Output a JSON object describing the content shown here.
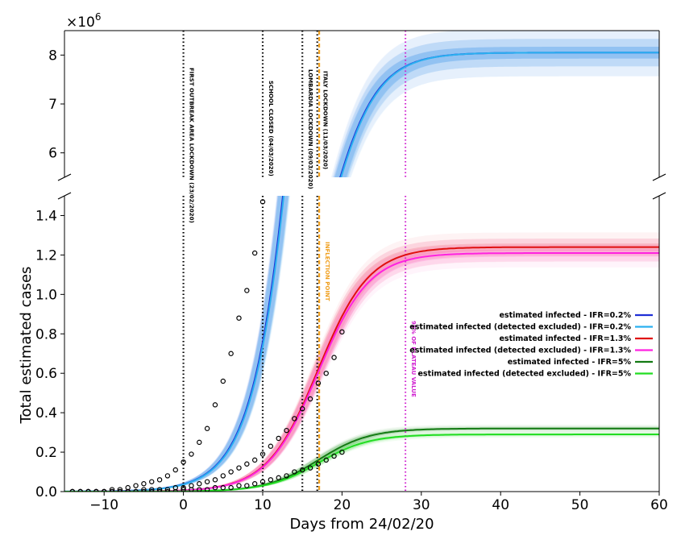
{
  "chart_data": {
    "type": "line",
    "ylabel": "Total estimated cases",
    "xlabel": "Days from 24/02/20",
    "y_multiplier_base": "×10",
    "y_multiplier_exp": "6",
    "xlim": [
      -15,
      60
    ],
    "x_ticks": [
      -10,
      0,
      10,
      20,
      30,
      40,
      50,
      60
    ],
    "x_tick_labels": [
      "−10",
      "0",
      "10",
      "20",
      "30",
      "40",
      "50",
      "60"
    ],
    "upper_panel": {
      "ylim": [
        5.5,
        8.5
      ],
      "y_ticks": [
        6,
        7,
        8
      ],
      "y_tick_labels": [
        "6",
        "7",
        "8"
      ]
    },
    "lower_panel": {
      "ylim": [
        0,
        1.5
      ],
      "y_ticks": [
        0,
        0.2,
        0.4,
        0.6,
        0.8,
        1.0,
        1.2,
        1.4
      ],
      "y_tick_labels": [
        "0.0",
        "0.2",
        "0.4",
        "0.6",
        "0.8",
        "1.0",
        "1.2",
        "1.4"
      ]
    },
    "series": [
      {
        "name": "estimated infected - IFR=0.2%",
        "color": "#1f2fd6",
        "L": 8.05,
        "k": 0.31,
        "x0": 17.3
      },
      {
        "name": "estimated infected (detected excluded) - IFR=0.2%",
        "color": "#2ab0f0",
        "L": 8.05,
        "k": 0.31,
        "x0": 17.4
      },
      {
        "name": "estimated infected - IFR=1.3%",
        "color": "#e01010",
        "L": 1.24,
        "k": 0.31,
        "x0": 17.0
      },
      {
        "name": "estimated infected (detected excluded) - IFR=1.3%",
        "color": "#ff22e0",
        "L": 1.21,
        "k": 0.31,
        "x0": 17.0
      },
      {
        "name": "estimated infected - IFR=5%",
        "color": "#137a13",
        "L": 0.32,
        "k": 0.31,
        "x0": 17.0
      },
      {
        "name": "estimated infected (detected excluded) - IFR=5%",
        "color": "#22dd22",
        "L": 0.29,
        "k": 0.31,
        "x0": 17.0
      }
    ],
    "observed_points": [
      {
        "series": "IFR=0.2%",
        "x": [
          -14,
          -13,
          -12,
          -11,
          -10,
          -9,
          -8,
          -7,
          -6,
          -5,
          -4,
          -3,
          -2,
          -1,
          0,
          1,
          2,
          3,
          4,
          5,
          6,
          7,
          8,
          9,
          10
        ],
        "y": [
          0.0,
          0.0,
          0.0,
          0.0,
          0.0,
          0.01,
          0.01,
          0.02,
          0.03,
          0.04,
          0.05,
          0.06,
          0.08,
          0.11,
          0.15,
          0.19,
          0.25,
          0.32,
          0.44,
          0.56,
          0.7,
          0.88,
          1.02,
          1.21,
          1.47
        ]
      },
      {
        "series": "IFR=1.3%",
        "x": [
          -14,
          -13,
          -12,
          -11,
          -10,
          -9,
          -8,
          -7,
          -6,
          -5,
          -4,
          -3,
          -2,
          -1,
          0,
          1,
          2,
          3,
          4,
          5,
          6,
          7,
          8,
          9,
          10,
          11,
          12,
          13,
          14,
          15,
          16,
          17,
          18,
          19,
          20
        ],
        "y": [
          0.0,
          0.0,
          0.0,
          0.0,
          0.0,
          0.0,
          0.0,
          0.0,
          0.0,
          0.01,
          0.01,
          0.01,
          0.01,
          0.02,
          0.02,
          0.03,
          0.04,
          0.05,
          0.06,
          0.08,
          0.1,
          0.12,
          0.14,
          0.16,
          0.19,
          0.23,
          0.27,
          0.31,
          0.37,
          0.42,
          0.47,
          0.55,
          0.6,
          0.68,
          0.81
        ]
      },
      {
        "series": "IFR=5%",
        "x": [
          -14,
          -13,
          -12,
          -11,
          -10,
          -9,
          -8,
          -7,
          -6,
          -5,
          -4,
          -3,
          -2,
          -1,
          0,
          1,
          2,
          3,
          4,
          5,
          6,
          7,
          8,
          9,
          10,
          11,
          12,
          13,
          14,
          15,
          16,
          17,
          18,
          19,
          20
        ],
        "y": [
          0.0,
          0.0,
          0.0,
          0.0,
          0.0,
          0.0,
          0.0,
          0.0,
          0.0,
          0.0,
          0.0,
          0.0,
          0.0,
          0.0,
          0.01,
          0.01,
          0.01,
          0.01,
          0.02,
          0.02,
          0.02,
          0.03,
          0.03,
          0.04,
          0.05,
          0.06,
          0.07,
          0.08,
          0.1,
          0.11,
          0.12,
          0.14,
          0.16,
          0.18,
          0.2
        ]
      }
    ],
    "vertical_lines": [
      {
        "x": 0,
        "label": "FIRST OUTBREAK AREA LOCKDOWN (23/02/2020)",
        "color": "#000000"
      },
      {
        "x": 10,
        "label": "SCHOOL CLOSED (04/03/2020)",
        "color": "#000000"
      },
      {
        "x": 15,
        "label": "LOMBARDIA LOCKDOWN (09/03/2020)",
        "color": "#000000"
      },
      {
        "x": 17,
        "label": "ITALY LOCKDOWN (11/03/2020)",
        "color": "#000000"
      },
      {
        "x": 17,
        "label": "INFLECTION POINT",
        "color": "#f0a020"
      },
      {
        "x": 28,
        "label": "95% OF PLATEAU VALUE",
        "color": "#d020d0"
      }
    ],
    "legend_position": "center-right",
    "grid": false
  }
}
